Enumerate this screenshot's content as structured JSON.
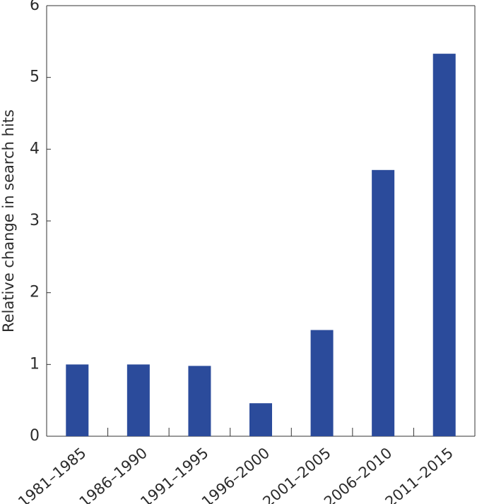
{
  "chart_data": {
    "type": "bar",
    "title": "",
    "xlabel": "",
    "ylabel": "Relative change in search hits",
    "categories": [
      "1981–1985",
      "1986–1990",
      "1991–1995",
      "1996–2000",
      "2001–2005",
      "2006–2010",
      "2011–2015"
    ],
    "values": [
      1.0,
      1.0,
      0.98,
      0.46,
      1.48,
      3.71,
      5.33
    ],
    "ylim": [
      0,
      6
    ],
    "yticks": [
      "0",
      "1",
      "2",
      "3",
      "4",
      "5",
      "6"
    ],
    "grid": false,
    "legend": "none",
    "bar_color": "#2b4b9b"
  }
}
